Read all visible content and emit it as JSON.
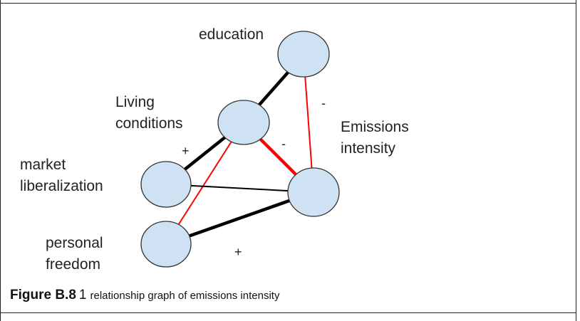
{
  "nodes": {
    "education": {
      "label": "education",
      "fill": "#cfe2f3"
    },
    "living_conditions": {
      "label": "Living\nconditions",
      "fill": "#cfe2f3"
    },
    "emissions_intensity": {
      "label": "Emissions\nintensity",
      "fill": "#cfe2f3"
    },
    "market_liberalization": {
      "label": "market\nliberalization",
      "fill": "#cfe2f3"
    },
    "personal_freedom": {
      "label": "personal\nfreedom",
      "fill": "#cfe2f3"
    }
  },
  "edges": [
    {
      "from": "education",
      "to": "living_conditions",
      "color": "#000000",
      "weight": "thick",
      "sign": ""
    },
    {
      "from": "education",
      "to": "emissions_intensity",
      "color": "#ff0000",
      "weight": "thin",
      "sign": "-"
    },
    {
      "from": "living_conditions",
      "to": "emissions_intensity",
      "color": "#ff0000",
      "weight": "thick",
      "sign": "-"
    },
    {
      "from": "living_conditions",
      "to": "market_liberalization",
      "color": "#000000",
      "weight": "thick",
      "sign": "+"
    },
    {
      "from": "living_conditions",
      "to": "personal_freedom",
      "color": "#ff0000",
      "weight": "thin",
      "sign": ""
    },
    {
      "from": "market_liberalization",
      "to": "emissions_intensity",
      "color": "#000000",
      "weight": "thin",
      "sign": ""
    },
    {
      "from": "personal_freedom",
      "to": "emissions_intensity",
      "color": "#000000",
      "weight": "thick",
      "sign": "+"
    }
  ],
  "colors": {
    "positive_edge": "#000000",
    "negative_edge": "#ff0000",
    "node_fill": "#cfe2f3",
    "node_stroke": "#333333"
  },
  "caption": {
    "label": "Figure B.8",
    "number": "1",
    "text": "relationship graph of emissions intensity"
  }
}
